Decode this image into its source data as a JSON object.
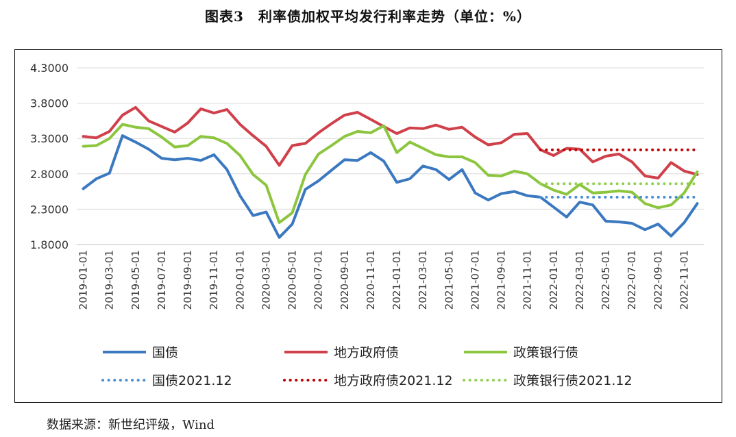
{
  "title": "图表3　利率债加权平均发行利率走势（单位：%）",
  "source": "数据来源：新世纪评级，Wind",
  "chart_data": {
    "type": "line",
    "title": "图表3　利率债加权平均发行利率走势（单位：%）",
    "ylim": [
      1.8,
      4.3
    ],
    "yticks": [
      "4.3000",
      "3.8000",
      "3.3000",
      "2.8000",
      "2.3000",
      "1.8000"
    ],
    "ytick_values": [
      4.3,
      3.8,
      3.3,
      2.8,
      2.3,
      1.8
    ],
    "x": [
      "2019-01",
      "2019-02",
      "2019-03",
      "2019-04",
      "2019-05",
      "2019-06",
      "2019-07",
      "2019-08",
      "2019-09",
      "2019-10",
      "2019-11",
      "2019-12",
      "2020-01",
      "2020-02",
      "2020-03",
      "2020-04",
      "2020-05",
      "2020-06",
      "2020-07",
      "2020-08",
      "2020-09",
      "2020-10",
      "2020-11",
      "2020-12",
      "2021-01",
      "2021-02",
      "2021-03",
      "2021-04",
      "2021-05",
      "2021-06",
      "2021-07",
      "2021-08",
      "2021-09",
      "2021-10",
      "2021-11",
      "2021-12",
      "2022-01",
      "2022-02",
      "2022-03",
      "2022-04",
      "2022-05",
      "2022-06",
      "2022-07",
      "2022-08",
      "2022-09",
      "2022-10",
      "2022-11",
      "2022-12"
    ],
    "xtick_labels": [
      "2019-01-01",
      "2019-03-01",
      "2019-05-01",
      "2019-07-01",
      "2019-09-01",
      "2019-11-01",
      "2020-01-01",
      "2020-03-01",
      "2020-05-01",
      "2020-07-01",
      "2020-09-01",
      "2020-11-01",
      "2021-01-01",
      "2021-03-01",
      "2021-05-01",
      "2021-07-01",
      "2021-09-01",
      "2021-11-01",
      "2022-01-01",
      "2022-03-01",
      "2022-05-01",
      "2022-07-01",
      "2022-09-01",
      "2022-11-01"
    ],
    "series": [
      {
        "name": "国债",
        "color": "#3a78c0",
        "style": "solid",
        "values": [
          2.59,
          2.73,
          2.81,
          3.34,
          3.25,
          3.15,
          3.02,
          3.0,
          3.02,
          2.99,
          3.07,
          2.86,
          2.49,
          2.21,
          2.26,
          1.9,
          2.09,
          2.58,
          2.7,
          2.85,
          3.0,
          2.99,
          3.1,
          2.98,
          2.68,
          2.73,
          2.91,
          2.86,
          2.72,
          2.86,
          2.53,
          2.43,
          2.52,
          2.55,
          2.49,
          2.47,
          2.33,
          2.19,
          2.4,
          2.36,
          2.13,
          2.12,
          2.1,
          2.01,
          2.09,
          1.92,
          2.11,
          2.38
        ]
      },
      {
        "name": "地方政府债",
        "color": "#d0404a",
        "style": "solid",
        "values": [
          3.33,
          3.31,
          3.4,
          3.63,
          3.74,
          3.55,
          3.47,
          3.39,
          3.52,
          3.72,
          3.66,
          3.71,
          3.5,
          3.34,
          3.19,
          2.92,
          3.2,
          3.23,
          3.38,
          3.51,
          3.63,
          3.67,
          3.57,
          3.47,
          3.37,
          3.45,
          3.44,
          3.49,
          3.43,
          3.46,
          3.32,
          3.21,
          3.24,
          3.36,
          3.37,
          3.14,
          3.06,
          3.16,
          3.15,
          2.97,
          3.05,
          3.08,
          2.97,
          2.77,
          2.74,
          2.96,
          2.84,
          2.79
        ]
      },
      {
        "name": "政策银行债",
        "color": "#8cc63f",
        "style": "solid",
        "values": [
          3.19,
          3.2,
          3.3,
          3.5,
          3.46,
          3.44,
          3.32,
          3.18,
          3.2,
          3.33,
          3.31,
          3.23,
          3.06,
          2.79,
          2.64,
          2.11,
          2.25,
          2.79,
          3.08,
          3.2,
          3.33,
          3.4,
          3.38,
          3.48,
          3.1,
          3.25,
          3.16,
          3.07,
          3.04,
          3.04,
          2.96,
          2.78,
          2.77,
          2.84,
          2.8,
          2.66,
          2.57,
          2.51,
          2.65,
          2.53,
          2.54,
          2.56,
          2.54,
          2.38,
          2.32,
          2.36,
          2.53,
          2.83
        ]
      },
      {
        "name": "国债2021.12",
        "color": "#4a8fd6",
        "style": "dotted",
        "x_start": "2021-12",
        "value": 2.47
      },
      {
        "name": "地方政府债2021.12",
        "color": "#c00000",
        "style": "dotted",
        "x_start": "2021-12",
        "value": 3.14
      },
      {
        "name": "政策银行债2021.12",
        "color": "#92d050",
        "style": "dotted",
        "x_start": "2021-12",
        "value": 2.66
      }
    ],
    "grid": "horizontal",
    "legend": "bottom"
  }
}
